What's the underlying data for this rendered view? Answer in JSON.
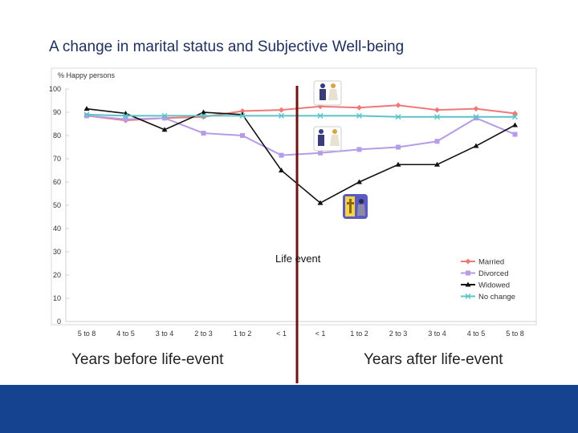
{
  "slide": {
    "title": "A change in marital status and Subjective Well-being",
    "label_before": "Years before life-event",
    "label_after": "Years after life-event"
  },
  "chart_data": {
    "type": "line",
    "ylabel": "% Happy persons",
    "ylim": [
      0,
      100
    ],
    "yticks": [
      0,
      10,
      20,
      30,
      40,
      50,
      60,
      70,
      80,
      90,
      100
    ],
    "categories": [
      "5 to 8",
      "4 to 5",
      "3 to 4",
      "2 to 3",
      "1 to 2",
      "< 1",
      "< 1",
      "1 to 2",
      "2 to 3",
      "3 to 4",
      "4 to 5",
      "5 to 8"
    ],
    "annotation": "Life event",
    "legend_position": "bottom-right",
    "series": [
      {
        "name": "Married",
        "color": "#f07878",
        "marker": "diamond",
        "values": [
          88.5,
          86.5,
          87.5,
          88,
          90.5,
          91,
          92.5,
          92,
          93,
          91,
          91.5,
          89.5
        ]
      },
      {
        "name": "Divorced",
        "color": "#b59be8",
        "marker": "square",
        "values": [
          88.5,
          87,
          87.5,
          81,
          80,
          71.5,
          72.5,
          74,
          75,
          77.5,
          87.5,
          80.5
        ]
      },
      {
        "name": "Widowed",
        "color": "#111111",
        "marker": "triangle",
        "values": [
          91.5,
          89.5,
          82.5,
          90,
          89,
          65,
          51,
          60,
          67.5,
          67.5,
          75.5,
          84.5
        ]
      },
      {
        "name": "No change",
        "color": "#5cc4c8",
        "marker": "x",
        "values": [
          89,
          88.5,
          88.5,
          88.5,
          88.5,
          88.5,
          88.5,
          88.5,
          88,
          88,
          88,
          88
        ]
      }
    ]
  }
}
